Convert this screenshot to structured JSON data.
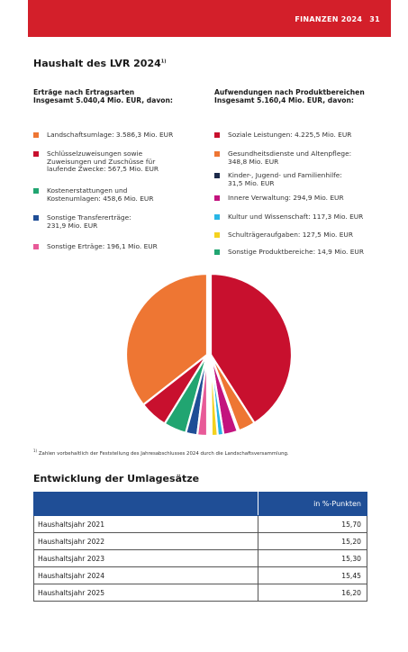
{
  "header": {
    "title": "FINANZEN 2024",
    "page_number": "31"
  },
  "section": {
    "title": "Haushalt des LVR 2024",
    "title_footnote_mark": "1)"
  },
  "income": {
    "heading_line1": "Erträge nach Ertragsarten",
    "heading_line2": "Insgesamt 5.040,4 Mio. EUR, davon:",
    "items": [
      {
        "lines": [
          "Landschaftsumlage: 3.586,3 Mio. EUR"
        ],
        "color": "#ee7633",
        "value": 3586.3
      },
      {
        "lines": [
          "Schlüsselzuweisungen sowie",
          "Zuweisungen und Zuschüsse für",
          "laufende Zwecke: 567,5 Mio. EUR"
        ],
        "color": "#c8102e",
        "value": 567.5
      },
      {
        "lines": [
          "Kostenerstattungen und",
          "Kostenumlagen: 458,6 Mio. EUR"
        ],
        "color": "#21a571",
        "value": 458.6
      },
      {
        "lines": [
          "Sonstige Transfererträge:",
          "231,9 Mio. EUR"
        ],
        "color": "#1f4e96",
        "value": 231.9
      },
      {
        "lines": [
          "Sonstige Erträge: 196,1 Mio. EUR"
        ],
        "color": "#e85a98",
        "value": 196.1
      }
    ]
  },
  "expenses": {
    "heading_line1": "Aufwendungen nach Produktbereichen",
    "heading_line2": "Insgesamt 5.160,4 Mio. EUR, davon:",
    "items": [
      {
        "lines": [
          "Soziale Leistungen: 4.225,5 Mio. EUR"
        ],
        "color": "#c8102e",
        "value": 4225.5
      },
      {
        "lines": [
          "Gesundheitsdienste und Altenpflege:",
          "348,8 Mio. EUR"
        ],
        "color": "#ee7633",
        "value": 348.8
      },
      {
        "lines": [
          "Kinder-, Jugend- und Familienhilfe:",
          "31,5 Mio. EUR"
        ],
        "color": "#1c2a4a",
        "value": 31.5
      },
      {
        "lines": [
          "Innere Verwaltung: 294,9 Mio. EUR"
        ],
        "color": "#c3137e",
        "value": 294.9
      },
      {
        "lines": [
          "Kultur und Wissenschaft: 117,3 Mio. EUR"
        ],
        "color": "#29b6e6",
        "value": 117.3
      },
      {
        "lines": [
          "Schulträgeraufgaben: 127,5 Mio. EUR"
        ],
        "color": "#f4d21f",
        "value": 127.5
      },
      {
        "lines": [
          "Sonstige Produktbereiche: 14,9 Mio. EUR"
        ],
        "color": "#21a571",
        "value": 14.9
      }
    ]
  },
  "footnote": {
    "mark": "1)",
    "text": "Zahlen vorbehaltlich der Feststellung des Jahresabschlusses 2024 durch die Landschaftsversammlung."
  },
  "table": {
    "title": "Entwicklung der Umlagesätze",
    "header_value": "in %-Punkten",
    "rows": [
      {
        "label": "Haushaltsjahr 2021",
        "value": "15,70"
      },
      {
        "label": "Haushaltsjahr 2022",
        "value": "15,20"
      },
      {
        "label": "Haushaltsjahr 2023",
        "value": "15,30"
      },
      {
        "label": "Haushaltsjahr 2024",
        "value": "15,45"
      },
      {
        "label": "Haushaltsjahr 2025",
        "value": "16,20"
      }
    ]
  }
}
